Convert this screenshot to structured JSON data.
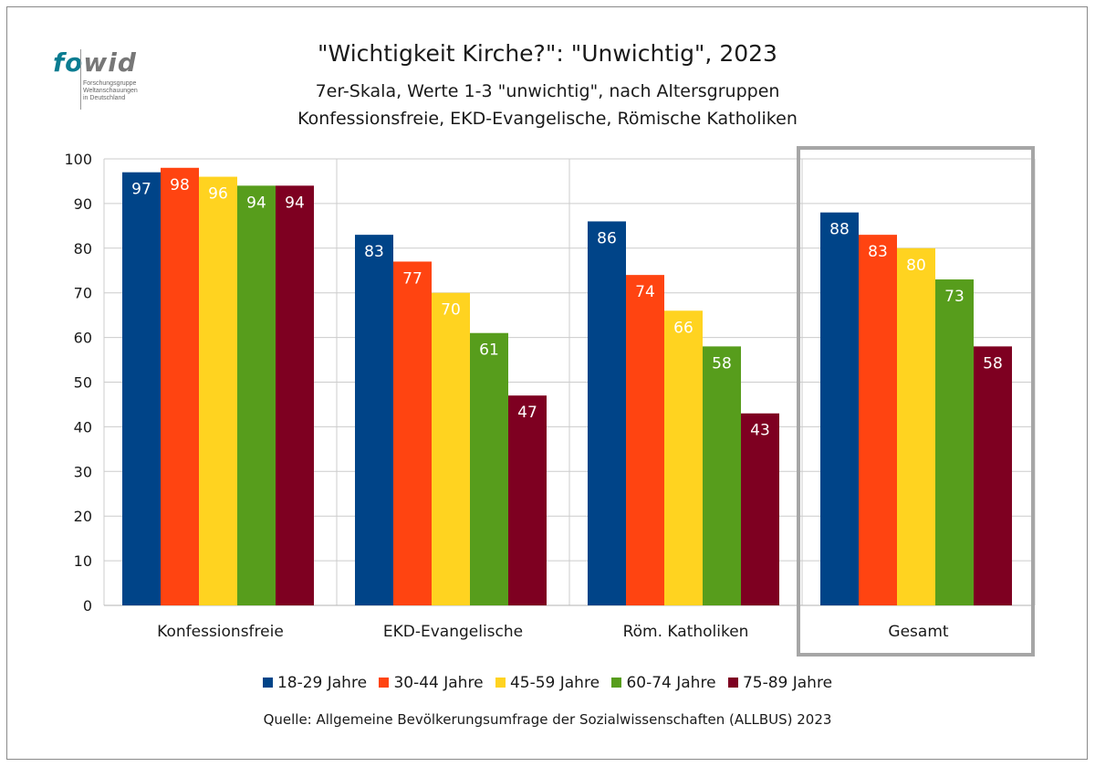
{
  "logo": {
    "word_a": "fo",
    "word_b": "wid",
    "sub_lines": [
      "Forschungsgruppe",
      "Weltanschauungen",
      "in Deutschland"
    ]
  },
  "colors": {
    "series": [
      "#004488",
      "#ff4411",
      "#ffd320",
      "#579d1c",
      "#7e0021"
    ],
    "grid": "#cccccc",
    "highlight_box": "#a6a6a6"
  },
  "chart_data": {
    "type": "bar",
    "title": "\"Wichtigkeit Kirche?\": \"Unwichtig\", 2023",
    "subtitle_lines": [
      "7er-Skala, Werte 1-3 \"unwichtig\", nach Altersgruppen",
      "Konfessionsfreie, EKD-Evangelische, Römische Katholiken"
    ],
    "categories": [
      "Konfessionsfreie",
      "EKD-Evangelische",
      "Röm. Katholiken",
      "Gesamt"
    ],
    "series": [
      {
        "name": "18-29 Jahre",
        "values": [
          97,
          83,
          86,
          88
        ]
      },
      {
        "name": "30-44 Jahre",
        "values": [
          98,
          77,
          74,
          83
        ]
      },
      {
        "name": "45-59 Jahre",
        "values": [
          96,
          70,
          66,
          80
        ]
      },
      {
        "name": "60-74 Jahre",
        "values": [
          94,
          61,
          58,
          73
        ]
      },
      {
        "name": "75-89 Jahre",
        "values": [
          94,
          47,
          43,
          58
        ]
      }
    ],
    "ylim": [
      0,
      100
    ],
    "yticks": [
      0,
      10,
      20,
      30,
      40,
      50,
      60,
      70,
      80,
      90,
      100
    ],
    "grid": true,
    "legend_position": "bottom",
    "highlighted_category": "Gesamt",
    "source": "Quelle: Allgemeine Bevölkerungsumfrage der Sozialwissenschaften (ALLBUS) 2023"
  }
}
